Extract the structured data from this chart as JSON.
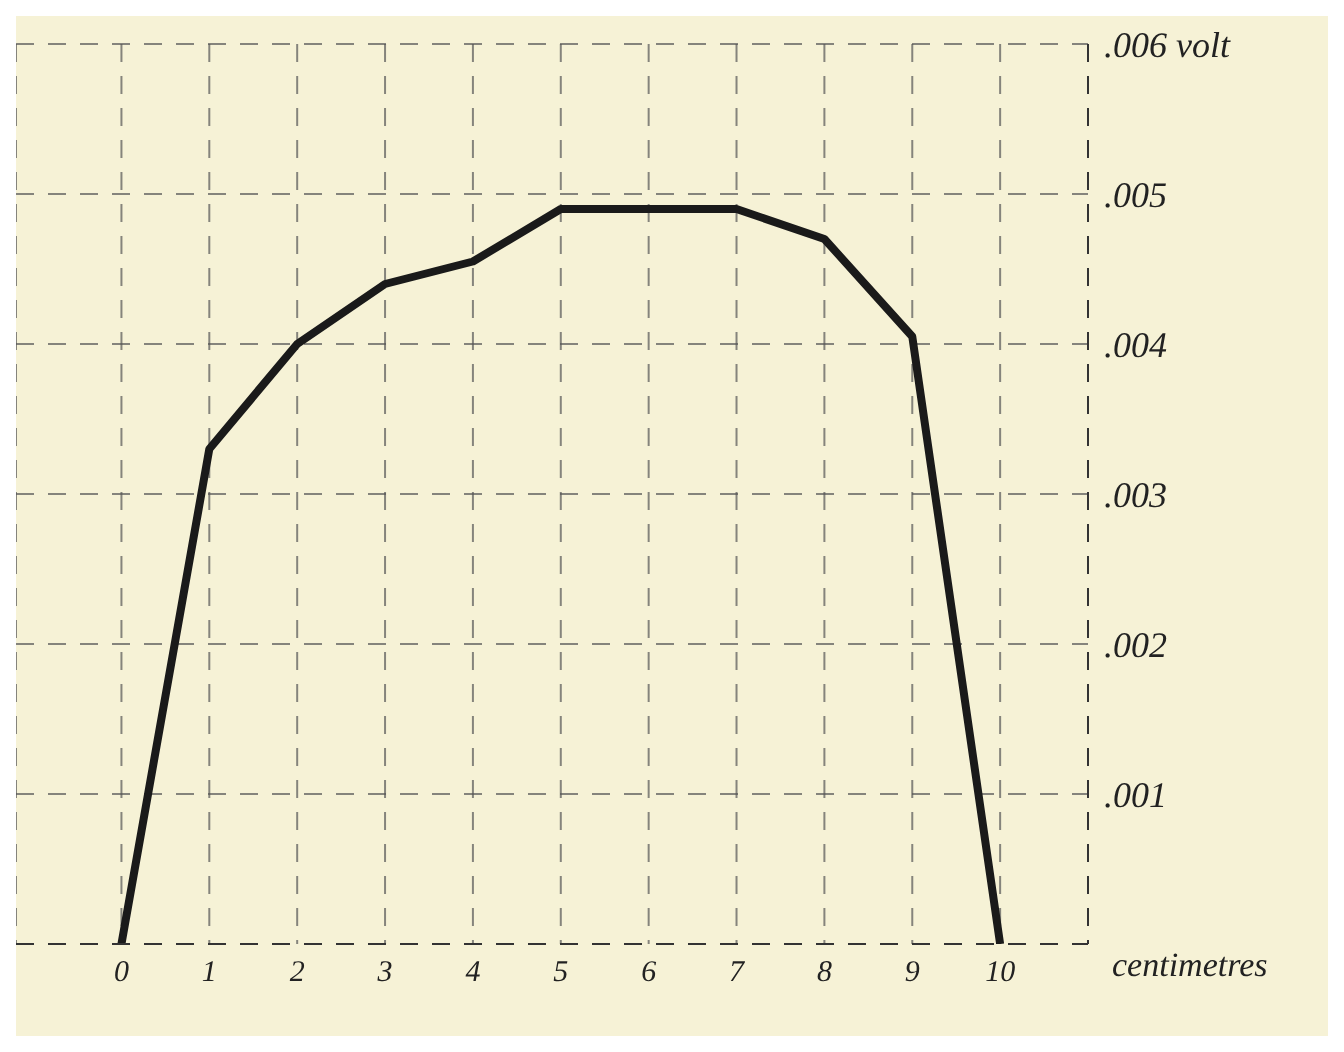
{
  "chart_data": {
    "type": "line",
    "xlabel": "centimetres",
    "x": [
      0,
      1,
      2,
      3,
      4,
      5,
      6,
      7,
      8,
      9,
      10
    ],
    "series": [
      {
        "color": "#1a1a1a",
        "values": [
          0,
          0.0033,
          0.004,
          0.0044,
          0.00455,
          0.0049,
          0.0049,
          0.0049,
          0.0047,
          0.00405,
          0
        ]
      }
    ],
    "xlim": [
      -1.2,
      11
    ],
    "xticks": [
      0,
      1,
      2,
      3,
      4,
      5,
      6,
      7,
      8,
      9,
      10
    ],
    "ylim": [
      0,
      0.006
    ],
    "yticks": [
      {
        "value": 0,
        "label": null
      },
      {
        "value": 0.001,
        "label": ".001"
      },
      {
        "value": 0.002,
        "label": ".002"
      },
      {
        "value": 0.003,
        "label": ".003"
      },
      {
        "value": 0.004,
        "label": ".004"
      },
      {
        "value": 0.005,
        "label": ".005"
      },
      {
        "value": 0.006,
        "label": ".006 volt"
      }
    ],
    "grid": true,
    "marker": "none",
    "line_style": "solid"
  }
}
